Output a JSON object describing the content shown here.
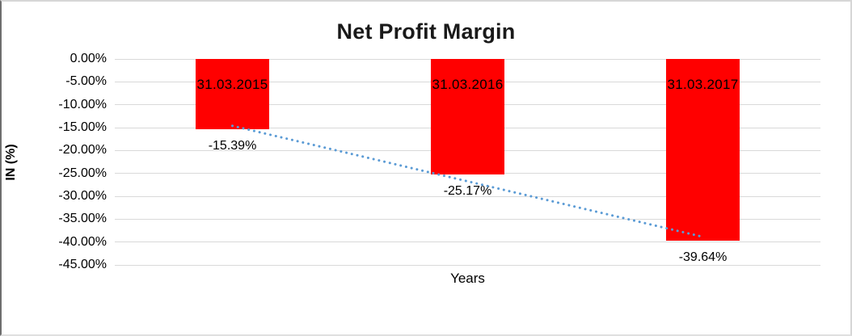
{
  "chart_data": {
    "type": "bar",
    "title": "Net Profit Margin",
    "categories": [
      "31.03.2015",
      "31.03.2016",
      "31.03.2017"
    ],
    "values": [
      -15.39,
      -25.17,
      -39.64
    ],
    "value_labels": [
      "-15.39%",
      "-25.17%",
      "-39.64%"
    ],
    "xlabel": "Years",
    "ylabel": "IN (%)",
    "ylim": [
      -45,
      0
    ],
    "yticks": [
      0,
      -5,
      -10,
      -15,
      -20,
      -25,
      -30,
      -35,
      -40,
      -45
    ],
    "ytick_labels": [
      "0.00%",
      "-5.00%",
      "-10.00%",
      "-15.00%",
      "-20.00%",
      "-25.00%",
      "-30.00%",
      "-35.00%",
      "-40.00%",
      "-45.00%"
    ],
    "grid": true,
    "legend_position": "none",
    "bar_color": "#FF0000",
    "text_color": "#000000",
    "gridline_color": "#D9D9D9",
    "trendline": {
      "type": "linear",
      "style": "dotted",
      "color": "#5B9BD5"
    }
  }
}
